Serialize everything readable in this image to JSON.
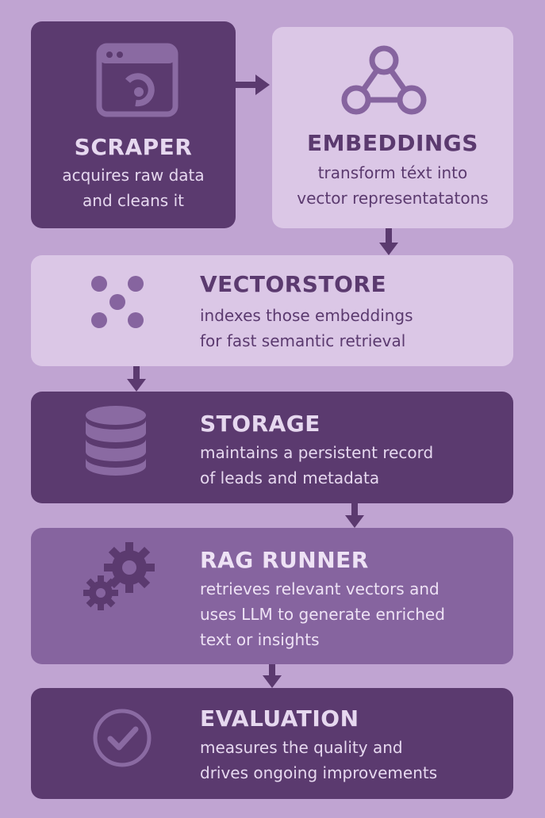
{
  "stages": [
    {
      "title": "SCRAPER",
      "lines": [
        "acquires raw data",
        "and cleans it"
      ],
      "icon": "browser-window-icon"
    },
    {
      "title": "EMBEDDINGS",
      "lines": [
        "transform téxt into",
        "vector representatatons"
      ],
      "icon": "network-graph-icon"
    },
    {
      "title": "VECTORSTORE",
      "lines": [
        "indexes those embeddings",
        "for fast semantic retrieval"
      ],
      "icon": "dots-cluster-icon"
    },
    {
      "title": "STORAGE",
      "lines": [
        "maintains a persistent record",
        "of leads and metadata"
      ],
      "icon": "database-icon"
    },
    {
      "title": "RAG RUNNER",
      "lines": [
        "retrieves relevant vectors and",
        "uses LLM to generate enriched",
        "text or insights"
      ],
      "icon": "gears-icon"
    },
    {
      "title": "EVALUATION",
      "lines": [
        "measures the quality and",
        "drives ongoing improvements"
      ],
      "icon": "check-circle-icon"
    }
  ],
  "colors": {
    "background": "#c0a4d2",
    "dark": "#5b3a6f",
    "light": "#dbc7e6",
    "mid": "#86649f"
  }
}
